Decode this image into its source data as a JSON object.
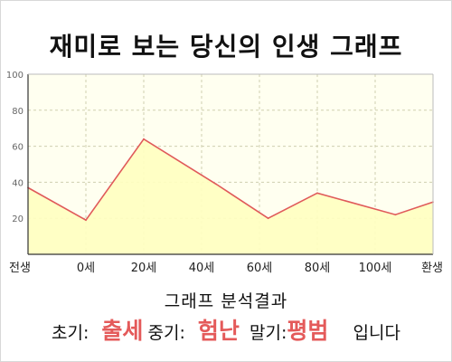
{
  "title": "재미로 보는 당신의 인생 그래프",
  "chart_data": {
    "type": "area",
    "categories": [
      "전생",
      "0세",
      "20세",
      "40세",
      "60세",
      "80세",
      "100세",
      "환생"
    ],
    "x": [
      0,
      1,
      2,
      3,
      4,
      5,
      6,
      7
    ],
    "series": [
      {
        "x": [
          0,
          1,
          2,
          3.25,
          4.15,
          5,
          6.35,
          7
        ],
        "values": [
          37,
          19,
          64,
          39,
          20,
          34,
          22,
          29
        ]
      }
    ],
    "ylim": [
      0,
      100
    ],
    "yticks": [
      20,
      40,
      60,
      80,
      100
    ],
    "grid": true,
    "colors": {
      "line": "#e05a5a",
      "fill": "#ffffc0",
      "plot_bg": "#fffff0",
      "grid": "#cfcfb0"
    }
  },
  "result": {
    "heading": "그래프 분석결과",
    "early_label": "초기:",
    "early_value": "출세",
    "middle_label": "중기:",
    "middle_value": "험난",
    "late_label": "말기:",
    "late_value": "평범",
    "suffix": "입니다"
  }
}
